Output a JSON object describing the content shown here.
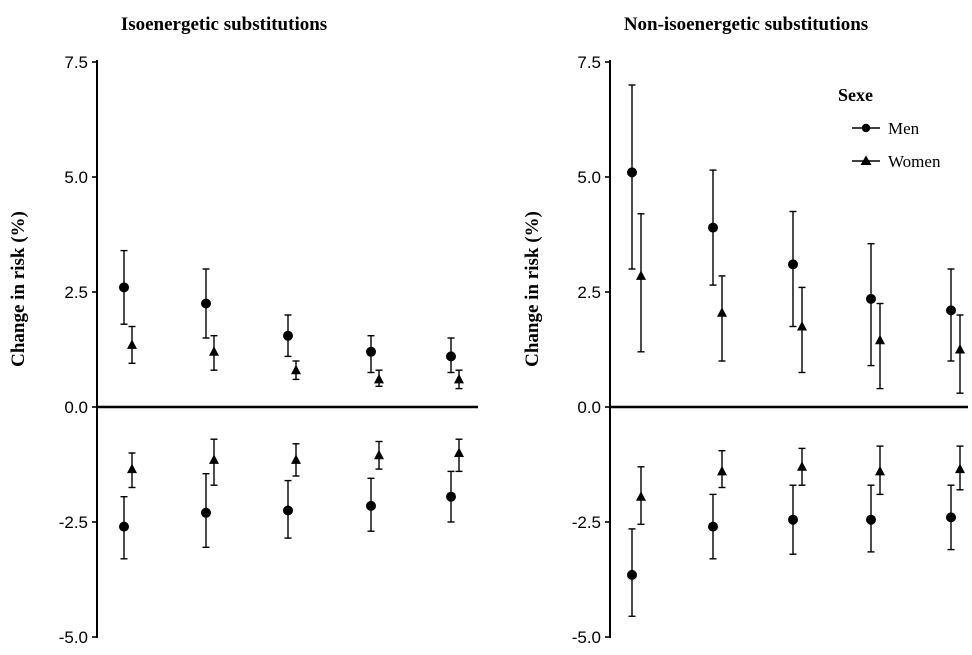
{
  "chart_data": [
    {
      "type": "scatter",
      "title": "Isoenergetic substitutions",
      "ylabel": "Change in risk (%)",
      "ylim": [
        -5.0,
        7.5
      ],
      "yticks": [
        "7.5",
        "5.0",
        "2.5",
        "0.0",
        "-2.5",
        "-5.0"
      ],
      "grid": false,
      "series": [
        {
          "name": "Men",
          "marker": "circle",
          "points": [
            {
              "group": 1,
              "y": 2.6,
              "lo": 1.8,
              "hi": 3.4
            },
            {
              "group": 2,
              "y": 2.25,
              "lo": 1.5,
              "hi": 3.0
            },
            {
              "group": 3,
              "y": 1.55,
              "lo": 1.1,
              "hi": 2.0
            },
            {
              "group": 4,
              "y": 1.2,
              "lo": 0.75,
              "hi": 1.55
            },
            {
              "group": 5,
              "y": 1.1,
              "lo": 0.75,
              "hi": 1.5
            },
            {
              "group": 1,
              "y": -2.6,
              "lo": -3.3,
              "hi": -1.95
            },
            {
              "group": 2,
              "y": -2.3,
              "lo": -3.05,
              "hi": -1.45
            },
            {
              "group": 3,
              "y": -2.25,
              "lo": -2.85,
              "hi": -1.6
            },
            {
              "group": 4,
              "y": -2.15,
              "lo": -2.7,
              "hi": -1.55
            },
            {
              "group": 5,
              "y": -1.95,
              "lo": -2.5,
              "hi": -1.4
            }
          ]
        },
        {
          "name": "Women",
          "marker": "triangle",
          "points": [
            {
              "group": 1,
              "y": 1.35,
              "lo": 0.95,
              "hi": 1.75
            },
            {
              "group": 2,
              "y": 1.2,
              "lo": 0.8,
              "hi": 1.55
            },
            {
              "group": 3,
              "y": 0.8,
              "lo": 0.6,
              "hi": 1.0
            },
            {
              "group": 4,
              "y": 0.6,
              "lo": 0.45,
              "hi": 0.8
            },
            {
              "group": 5,
              "y": 0.6,
              "lo": 0.4,
              "hi": 0.8
            },
            {
              "group": 1,
              "y": -1.35,
              "lo": -1.75,
              "hi": -1.0
            },
            {
              "group": 2,
              "y": -1.15,
              "lo": -1.7,
              "hi": -0.7
            },
            {
              "group": 3,
              "y": -1.15,
              "lo": -1.5,
              "hi": -0.8
            },
            {
              "group": 4,
              "y": -1.05,
              "lo": -1.35,
              "hi": -0.75
            },
            {
              "group": 5,
              "y": -1.0,
              "lo": -1.4,
              "hi": -0.7
            }
          ]
        }
      ]
    },
    {
      "type": "scatter",
      "title": "Non-isoenergetic substitutions",
      "ylabel": "Change in risk (%)",
      "ylim": [
        -5.0,
        7.5
      ],
      "yticks": [
        "7.5",
        "5.0",
        "2.5",
        "0.0",
        "-2.5",
        "-5.0"
      ],
      "grid": false,
      "legend": {
        "title": "Sexe",
        "position": "top-right"
      },
      "series": [
        {
          "name": "Men",
          "marker": "circle",
          "points": [
            {
              "group": 1,
              "y": 5.1,
              "lo": 3.0,
              "hi": 7.0
            },
            {
              "group": 2,
              "y": 3.9,
              "lo": 2.65,
              "hi": 5.15
            },
            {
              "group": 3,
              "y": 3.1,
              "lo": 1.75,
              "hi": 4.25
            },
            {
              "group": 4,
              "y": 2.35,
              "lo": 0.9,
              "hi": 3.55
            },
            {
              "group": 5,
              "y": 2.1,
              "lo": 1.0,
              "hi": 3.0
            },
            {
              "group": 1,
              "y": -3.65,
              "lo": -4.55,
              "hi": -2.65
            },
            {
              "group": 2,
              "y": -2.6,
              "lo": -3.3,
              "hi": -1.9
            },
            {
              "group": 3,
              "y": -2.45,
              "lo": -3.2,
              "hi": -1.7
            },
            {
              "group": 4,
              "y": -2.45,
              "lo": -3.15,
              "hi": -1.7
            },
            {
              "group": 5,
              "y": -2.4,
              "lo": -3.1,
              "hi": -1.7
            }
          ]
        },
        {
          "name": "Women",
          "marker": "triangle",
          "points": [
            {
              "group": 1,
              "y": 2.85,
              "lo": 1.2,
              "hi": 4.2
            },
            {
              "group": 2,
              "y": 2.05,
              "lo": 1.0,
              "hi": 2.85
            },
            {
              "group": 3,
              "y": 1.75,
              "lo": 0.75,
              "hi": 2.6
            },
            {
              "group": 4,
              "y": 1.45,
              "lo": 0.4,
              "hi": 2.25
            },
            {
              "group": 5,
              "y": 1.25,
              "lo": 0.3,
              "hi": 2.0
            },
            {
              "group": 1,
              "y": -1.95,
              "lo": -2.55,
              "hi": -1.3
            },
            {
              "group": 2,
              "y": -1.4,
              "lo": -1.75,
              "hi": -0.95
            },
            {
              "group": 3,
              "y": -1.3,
              "lo": -1.7,
              "hi": -0.9
            },
            {
              "group": 4,
              "y": -1.4,
              "lo": -1.9,
              "hi": -0.85
            },
            {
              "group": 5,
              "y": -1.35,
              "lo": -1.8,
              "hi": -0.85
            }
          ]
        }
      ]
    }
  ]
}
